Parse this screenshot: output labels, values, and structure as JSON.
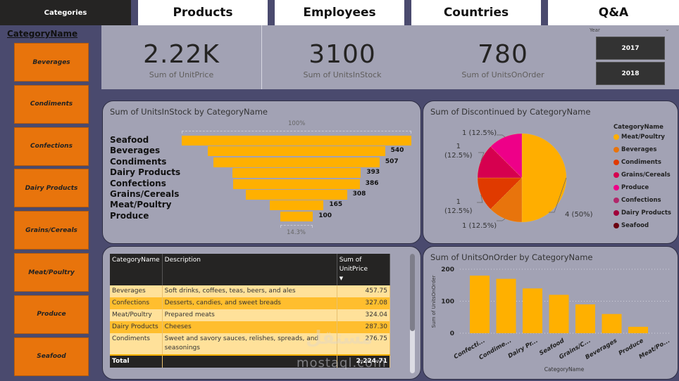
{
  "nav": {
    "active": "Categories",
    "tabs": [
      "Products",
      "Employees",
      "Countries",
      "Q&A"
    ]
  },
  "slicer": {
    "title": "CategoryName",
    "items": [
      "Beverages",
      "Condiments",
      "Confections",
      "Dairy Products",
      "Grains/Cereals",
      "Meat/Poultry",
      "Produce",
      "Seafood"
    ]
  },
  "kpis": [
    {
      "value": "2.22K",
      "label": "Sum of UnitPrice"
    },
    {
      "value": "3100",
      "label": "Sum of UnitsInStock"
    },
    {
      "value": "780",
      "label": "Sum of UnitsOnOrder"
    }
  ],
  "year_slicer": {
    "label": "Year",
    "chevron": "⌄",
    "options": [
      "2017",
      "2018"
    ]
  },
  "colors": {
    "accent": "#ffb000",
    "slicer_orange": "#e8740c",
    "background": "#4a4a6e",
    "panel": "#a2a2b4"
  },
  "chart_data": [
    {
      "type": "bar",
      "subtype": "funnel",
      "title": "Sum of UnitsInStock by CategoryName",
      "categories": [
        "Seafood",
        "Beverages",
        "Condiments",
        "Dairy Products",
        "Confections",
        "Grains/Cereals",
        "Meat/Poultry",
        "Produce"
      ],
      "values": [
        701,
        540,
        507,
        393,
        386,
        308,
        165,
        100
      ],
      "data_labels": [
        "",
        "540",
        "507",
        "393",
        "386",
        "308",
        "165",
        "100"
      ],
      "top_pct_label": "100%",
      "bottom_pct_label": "14.3%"
    },
    {
      "type": "pie",
      "title": "Sum of Discontinued by CategoryName",
      "legend_title": "CategoryName",
      "legend_position": "right",
      "categories": [
        "Meat/Poultry",
        "Beverages",
        "Condiments",
        "Grains/Cereals",
        "Produce",
        "Confections",
        "Dairy Products",
        "Seafood"
      ],
      "values": [
        4,
        1,
        1,
        1,
        1,
        0,
        0,
        0
      ],
      "colors": [
        "#ffae00",
        "#e8740c",
        "#e03a00",
        "#d6004f",
        "#ee0088",
        "#b0286a",
        "#a0003a",
        "#6a0010"
      ],
      "data_labels": [
        {
          "category": "Meat/Poultry",
          "text": "4 (50%)"
        },
        {
          "category": "Beverages",
          "text": "1 (12.5%)"
        },
        {
          "category": "Condiments",
          "text": "1 (12.5%)"
        },
        {
          "category": "Grains/Cereals",
          "text": "1 (12.5%)"
        },
        {
          "category": "Produce",
          "text": "1 (12.5%)"
        }
      ]
    },
    {
      "type": "table",
      "columns": [
        "CategoryName",
        "Description",
        "Sum of UnitPrice"
      ],
      "sort_indicator": "▼",
      "rows": [
        [
          "Beverages",
          "Soft drinks, coffees, teas, beers, and ales",
          "457.75"
        ],
        [
          "Confections",
          "Desserts, candies, and sweet breads",
          "327.08"
        ],
        [
          "Meat/Poultry",
          "Prepared meats",
          "324.04"
        ],
        [
          "Dairy Products",
          "Cheeses",
          "287.30"
        ],
        [
          "Condiments",
          "Sweet and savory sauces, relishes, spreads, and seasonings",
          "276.75"
        ]
      ],
      "total": {
        "label": "Total",
        "value": "2,224.71"
      }
    },
    {
      "type": "bar",
      "title": "Sum of UnitsOnOrder by CategoryName",
      "xlabel": "CategoryName",
      "ylabel": "Sum of UnitsOnOrder",
      "categories": [
        "Confecti...",
        "Condime...",
        "Dairy Pr...",
        "Seafood",
        "Grains/C...",
        "Beverages",
        "Produce",
        "Meat/Po..."
      ],
      "values": [
        180,
        170,
        140,
        120,
        90,
        60,
        20,
        0
      ],
      "ylim": [
        0,
        200
      ],
      "yticks": [
        0,
        100,
        200
      ],
      "grid": true
    }
  ],
  "watermark": {
    "latin": "mostaql.com",
    "arabic": "مستقل"
  }
}
